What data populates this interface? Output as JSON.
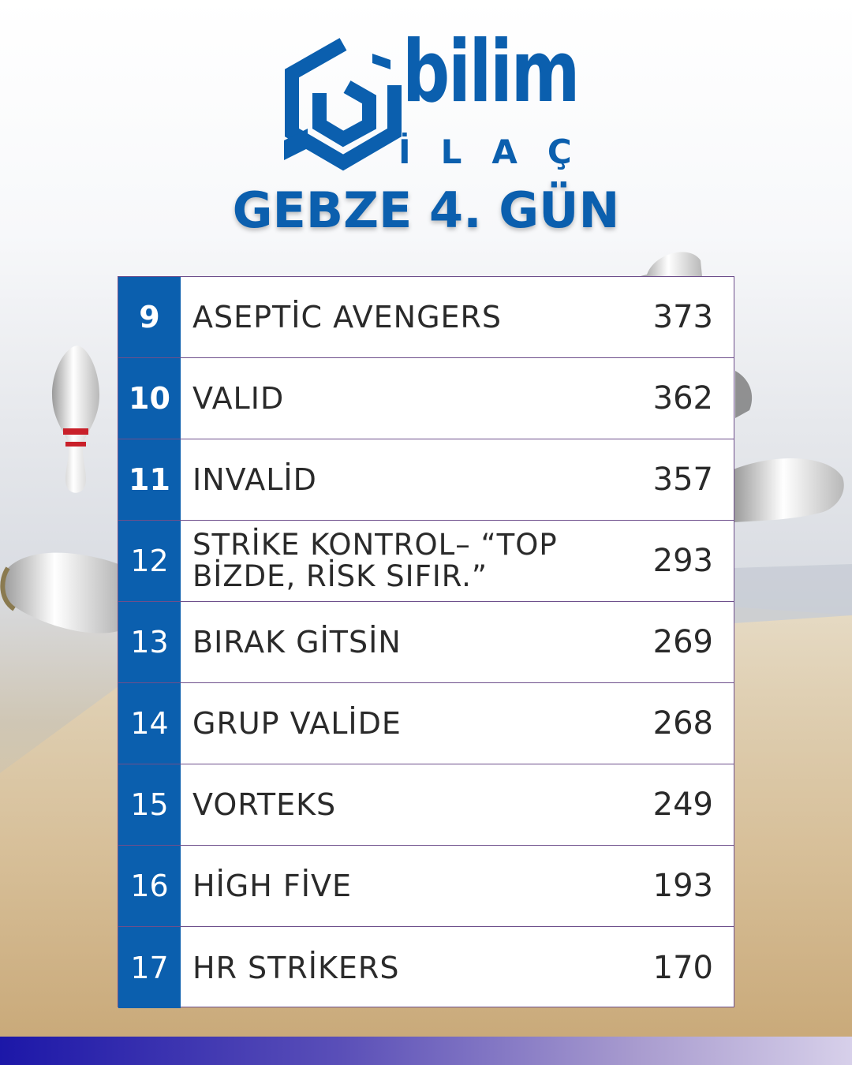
{
  "brand": {
    "name_line1": "bilim",
    "name_line2": "İLAÇ",
    "primary_color": "#0b5fae"
  },
  "title": "GEBZE 4. GÜN",
  "table": {
    "rows": [
      {
        "rank": "9",
        "team": "ASEPTİC AVENGERS",
        "score": "373"
      },
      {
        "rank": "10",
        "team": "VALID",
        "score": "362"
      },
      {
        "rank": "11",
        "team": "INVALİD",
        "score": "357"
      },
      {
        "rank": "12",
        "team": "STRİKE KONTROL– “TOP BİZDE, RİSK SIFIR.”",
        "score": "293"
      },
      {
        "rank": "13",
        "team": "BIRAK GİTSİN",
        "score": "269"
      },
      {
        "rank": "14",
        "team": "GRUP VALİDE",
        "score": "268"
      },
      {
        "rank": "15",
        "team": "VORTEKS",
        "score": "249"
      },
      {
        "rank": "16",
        "team": "HİGH FİVE",
        "score": "193"
      },
      {
        "rank": "17",
        "team": "HR STRİKERS",
        "score": "170"
      }
    ]
  },
  "decor": {
    "background_scene": "bowling-lane-with-pins",
    "accent_bar_colors": [
      "#1c17a8",
      "#d7d0ea"
    ]
  }
}
